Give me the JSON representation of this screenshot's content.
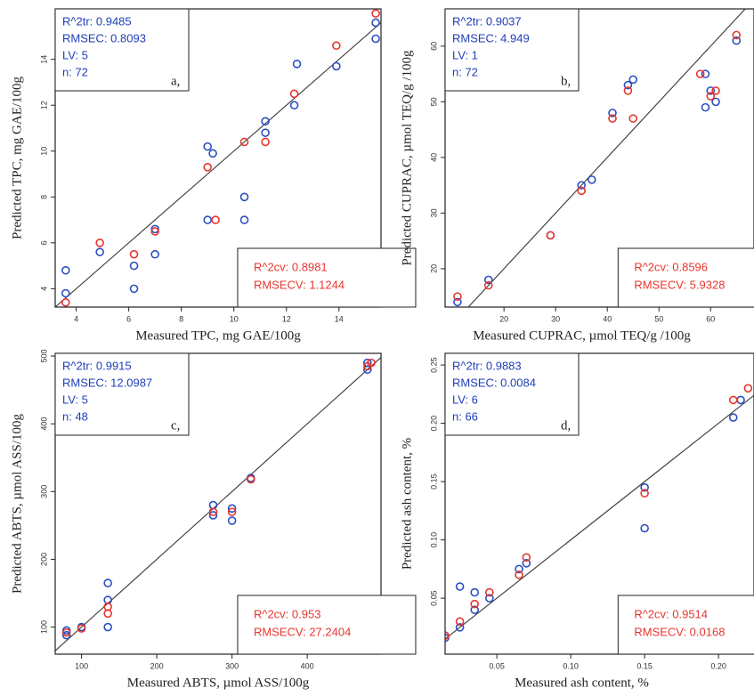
{
  "chart_data": [
    {
      "type": "scatter",
      "x_label": "Measured TPC, mg GAE/100g",
      "y_label": "Predicted TPC, mg GAE/100g",
      "train_stats": [
        "R^2tr: 0.9485",
        "RMSEC: 0.8093",
        "LV: 5",
        "n: 72"
      ],
      "panel_label": "a,",
      "cv_stats": [
        "R^2cv: 0.8981",
        "RMSECV: 1.1244"
      ],
      "xlim": [
        3.2,
        15.6
      ],
      "ylim": [
        3.2,
        16.2
      ],
      "xticks": [
        4,
        6,
        8,
        10,
        12,
        14
      ],
      "yticks": [
        4,
        6,
        8,
        10,
        12,
        14
      ],
      "series": [
        {
          "color": "#2a4fc0",
          "x": [
            3.6,
            3.6,
            4.9,
            6.2,
            6.2,
            7,
            7,
            9,
            9,
            9.2,
            10.4,
            10.4,
            11.2,
            11.2,
            12.3,
            12.4,
            13.9,
            15.4,
            15.4
          ],
          "values": [
            3.8,
            4.8,
            5.6,
            4.0,
            5.0,
            5.5,
            6.6,
            10.2,
            7.0,
            9.9,
            7.0,
            8.0,
            10.8,
            11.3,
            12.0,
            13.8,
            13.7,
            14.9,
            15.6
          ]
        },
        {
          "color": "#e8352e",
          "x": [
            3.6,
            4.9,
            6.2,
            7,
            9,
            9.3,
            10.4,
            11.2,
            12.3,
            13.9,
            15.4
          ],
          "values": [
            3.4,
            6.0,
            5.5,
            6.5,
            9.3,
            7.0,
            10.4,
            10.4,
            12.5,
            14.6,
            16.0
          ]
        }
      ]
    },
    {
      "type": "scatter",
      "x_label": "Measured CUPRAC, µmol TEQ/g /100g",
      "y_label": "Predicted CUPRAC, µmol TEQ/g /100g",
      "train_stats": [
        "R^2tr: 0.9037",
        "RMSEC: 4.949",
        "LV: 1",
        "n: 72"
      ],
      "panel_label": "b,",
      "cv_stats": [
        "R^2cv: 0.8596",
        "RMSECV: 5.9328"
      ],
      "xlim": [
        8.6,
        68.4
      ],
      "ylim": [
        13.1,
        66.7
      ],
      "xticks": [
        20,
        30,
        40,
        50,
        60
      ],
      "yticks": [
        20,
        30,
        40,
        50,
        60
      ],
      "series": [
        {
          "color": "#2a4fc0",
          "x": [
            11,
            17,
            29,
            35,
            37,
            41,
            44,
            45,
            59,
            59,
            60,
            61,
            65
          ],
          "values": [
            14,
            18,
            26,
            35,
            36,
            48,
            53,
            54,
            55,
            49,
            52,
            50,
            61
          ]
        },
        {
          "color": "#e8352e",
          "x": [
            11,
            17,
            29,
            35,
            41,
            44,
            45,
            58,
            60,
            61,
            65
          ],
          "values": [
            15,
            17,
            26,
            34,
            47,
            52,
            47,
            55,
            51,
            52,
            62
          ]
        }
      ]
    },
    {
      "type": "scatter",
      "x_label": "Measured ABTS, µmol ASS/100g",
      "y_label": "Predicted ABTS, µmol ASS/100g",
      "train_stats": [
        "R^2tr: 0.9915",
        "RMSEC: 12.0987",
        "LV: 5",
        "n: 48"
      ],
      "panel_label": "c,",
      "cv_stats": [
        "R^2cv: 0.953",
        "RMSECV: 27.2404"
      ],
      "xlim": [
        65,
        498
      ],
      "ylim": [
        60,
        504
      ],
      "xticks": [
        100,
        200,
        300,
        400
      ],
      "yticks": [
        100,
        200,
        300,
        400,
        500
      ],
      "series": [
        {
          "color": "#2a4fc0",
          "x": [
            80,
            80,
            100,
            135,
            135,
            135,
            275,
            275,
            300,
            300,
            325,
            480,
            480
          ],
          "values": [
            88,
            95,
            100,
            100,
            140,
            165,
            265,
            280,
            257,
            275,
            320,
            480,
            490
          ]
        },
        {
          "color": "#e8352e",
          "x": [
            80,
            100,
            135,
            135,
            275,
            300,
            325,
            480,
            485
          ],
          "values": [
            92,
            98,
            120,
            130,
            270,
            270,
            318,
            485,
            490
          ]
        }
      ]
    },
    {
      "type": "scatter",
      "x_label": "Measured ash content, %",
      "y_label": "Predicted ash content, %",
      "train_stats": [
        "R^2tr: 0.9883",
        "RMSEC: 0.0084",
        "LV: 6",
        "n: 66"
      ],
      "panel_label": "d,",
      "cv_stats": [
        "R^2cv: 0.9514",
        "RMSECV: 0.0168"
      ],
      "xlim": [
        0.015,
        0.224
      ],
      "ylim": [
        0.002,
        0.26
      ],
      "xticks": [
        0.05,
        {
          "value": 0.1,
          "label": "0.10"
        },
        0.15,
        {
          "value": 0.2,
          "label": "0.20"
        }
      ],
      "yticks": [
        0.05,
        {
          "value": 0.1,
          "label": "0.10"
        },
        0.15,
        {
          "value": 0.2,
          "label": "0.20"
        },
        0.25
      ],
      "series": [
        {
          "color": "#2a4fc0",
          "x": [
            0.015,
            0.025,
            0.025,
            0.035,
            0.035,
            0.045,
            0.065,
            0.07,
            0.15,
            0.15,
            0.21,
            0.215
          ],
          "values": [
            0.016,
            0.025,
            0.06,
            0.04,
            0.055,
            0.05,
            0.075,
            0.08,
            0.11,
            0.145,
            0.205,
            0.22
          ]
        },
        {
          "color": "#e8352e",
          "x": [
            0.015,
            0.025,
            0.035,
            0.045,
            0.065,
            0.07,
            0.15,
            0.21,
            0.22
          ],
          "values": [
            0.018,
            0.03,
            0.045,
            0.055,
            0.07,
            0.085,
            0.14,
            0.22,
            0.23
          ]
        }
      ]
    }
  ]
}
